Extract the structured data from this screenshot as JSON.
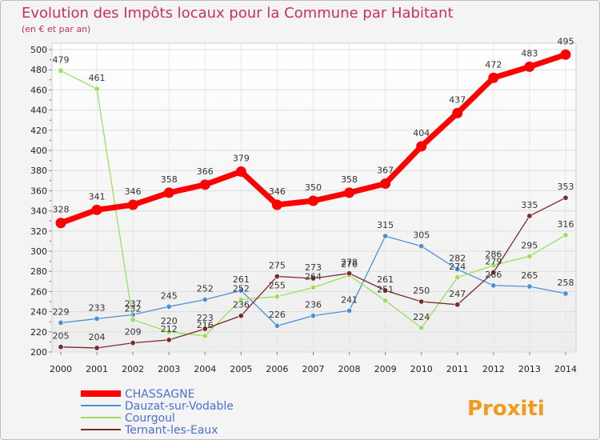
{
  "chart_data": {
    "type": "line",
    "title": "Evolution des Impôts locaux pour la Commune par Habitant",
    "subtitle": "(en € et par an)",
    "xlabel": "",
    "ylabel": "",
    "ylim": [
      200,
      500
    ],
    "yticks": [
      200,
      220,
      240,
      260,
      280,
      300,
      320,
      340,
      360,
      380,
      400,
      420,
      440,
      460,
      480,
      500
    ],
    "grid": true,
    "x": [
      "2000",
      "2001",
      "2002",
      "2003",
      "2004",
      "2005",
      "2006",
      "2007",
      "2008",
      "2009",
      "2010",
      "2011",
      "2012",
      "2013",
      "2014"
    ],
    "legend_position": "bottom-left",
    "series": [
      {
        "name": "CHASSAGNE",
        "color": "#ff0000",
        "emphasis": true,
        "values": [
          328,
          341,
          346,
          358,
          366,
          379,
          346,
          350,
          358,
          367,
          404,
          437,
          472,
          483,
          495
        ]
      },
      {
        "name": "Dauzat-sur-Vodable",
        "color": "#4a90d9",
        "values": [
          229,
          233,
          237,
          245,
          252,
          261,
          226,
          236,
          241,
          315,
          305,
          282,
          266,
          265,
          258
        ]
      },
      {
        "name": "Courgoul",
        "color": "#99e05f",
        "values": [
          479,
          461,
          232,
          220,
          216,
          252,
          255,
          264,
          276,
          251,
          224,
          274,
          286,
          295,
          316
        ]
      },
      {
        "name": "Ternant-les-Eaux",
        "color": "#7a2a2a",
        "values": [
          205,
          204,
          209,
          212,
          223,
          236,
          275,
          273,
          278,
          261,
          250,
          247,
          279,
          335,
          353
        ]
      }
    ]
  },
  "logo": {
    "text": "Proxiti",
    "alt": "Proxiti logo"
  }
}
